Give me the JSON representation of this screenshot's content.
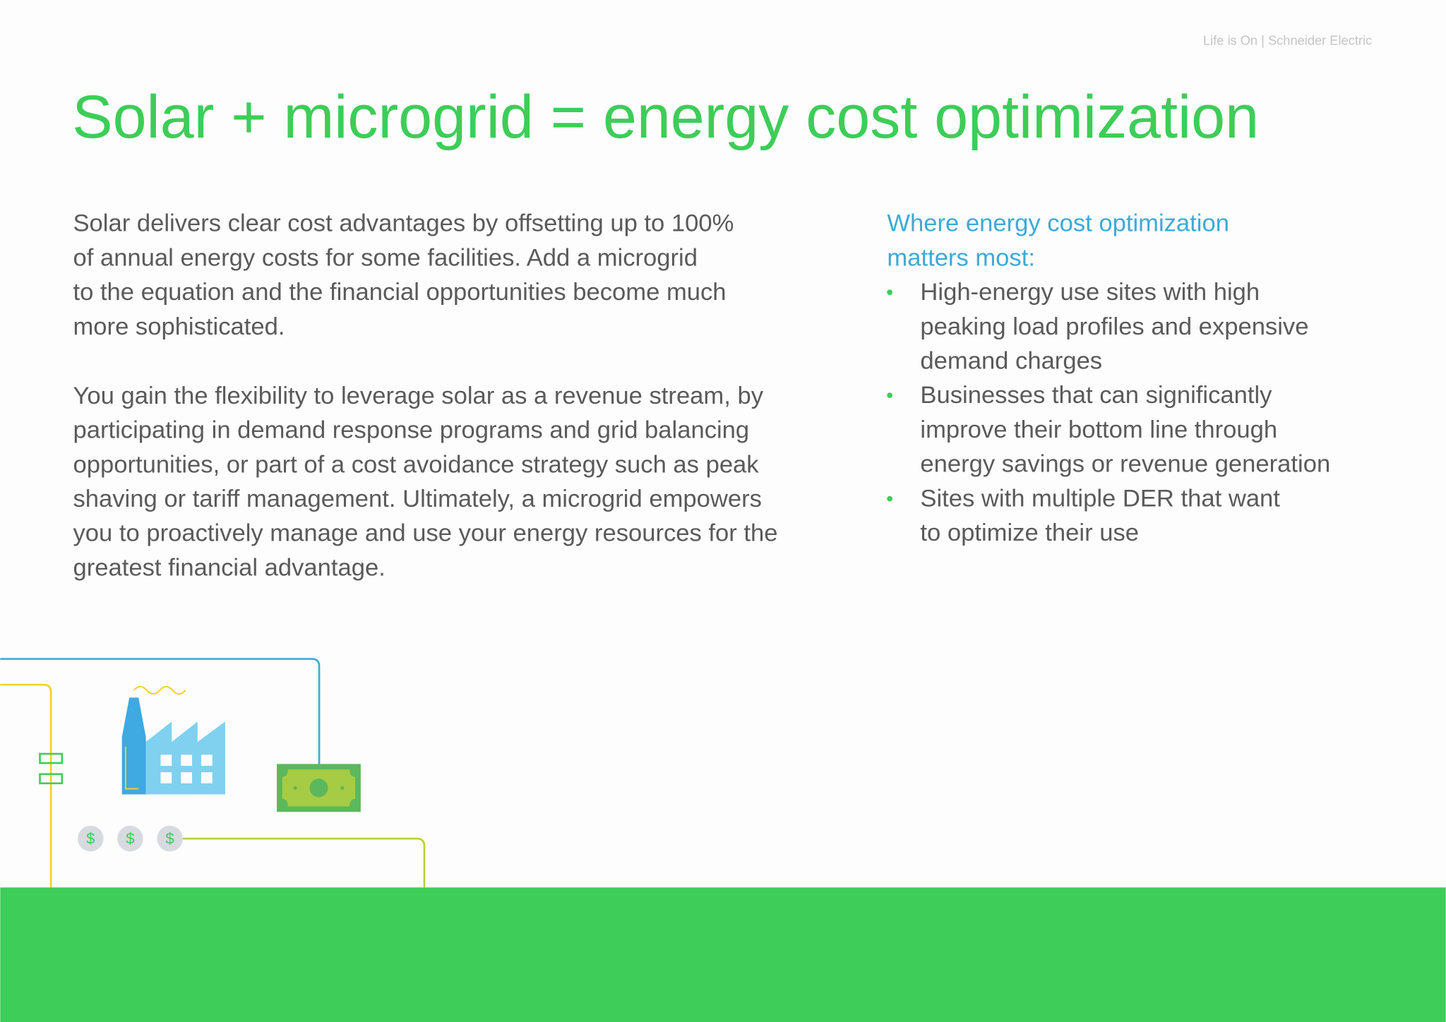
{
  "header": {
    "brand": "Life is On | Schneider Electric"
  },
  "title": "Solar + microgrid = energy cost optimization",
  "body": {
    "paragraphs": [
      [
        "Solar delivers clear cost advantages by offsetting up to 100%",
        "of annual energy costs for some facilities. Add a microgrid",
        "to the equation and the financial opportunities become much",
        "more sophisticated."
      ],
      [
        "You gain the flexibility to leverage solar as a revenue stream, by",
        "participating in demand response programs and grid balancing",
        "opportunities, or part of a cost avoidance strategy such as peak",
        "shaving or tariff management. Ultimately, a microgrid empowers",
        "you to proactively manage and use your energy resources for the",
        "greatest financial advantage."
      ]
    ]
  },
  "sidebar": {
    "heading": [
      "Where energy cost optimization",
      "matters most:"
    ],
    "bullet_symbol": "•",
    "bullets": [
      [
        "High-energy use sites with high",
        "peaking load profiles and expensive",
        "demand charges"
      ],
      [
        "Businesses that can significantly",
        "improve their bottom line through",
        "energy savings or revenue generation"
      ],
      [
        "Sites with multiple DER that want",
        "to optimize their use"
      ]
    ]
  },
  "illustration": {
    "coin_symbols": [
      "$",
      "$",
      "$"
    ]
  }
}
